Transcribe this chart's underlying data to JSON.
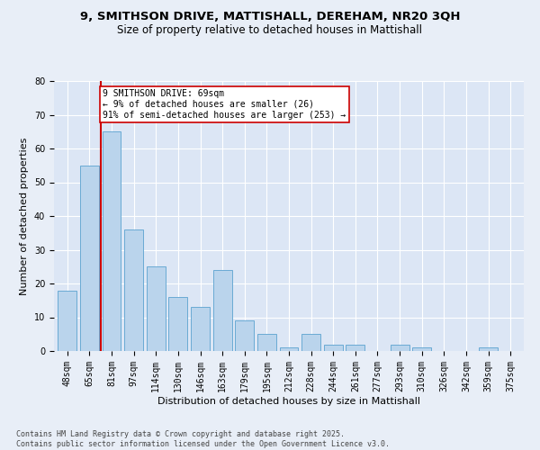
{
  "title1": "9, SMITHSON DRIVE, MATTISHALL, DEREHAM, NR20 3QH",
  "title2": "Size of property relative to detached houses in Mattishall",
  "xlabel": "Distribution of detached houses by size in Mattishall",
  "ylabel": "Number of detached properties",
  "categories": [
    "48sqm",
    "65sqm",
    "81sqm",
    "97sqm",
    "114sqm",
    "130sqm",
    "146sqm",
    "163sqm",
    "179sqm",
    "195sqm",
    "212sqm",
    "228sqm",
    "244sqm",
    "261sqm",
    "277sqm",
    "293sqm",
    "310sqm",
    "326sqm",
    "342sqm",
    "359sqm",
    "375sqm"
  ],
  "values": [
    18,
    55,
    65,
    36,
    25,
    16,
    13,
    24,
    9,
    5,
    1,
    5,
    2,
    2,
    0,
    2,
    1,
    0,
    0,
    1,
    0
  ],
  "bar_color": "#bad4ec",
  "bar_edge_color": "#6aaad4",
  "vline_x": 1.5,
  "vline_color": "#cc0000",
  "annotation_text": "9 SMITHSON DRIVE: 69sqm\n← 9% of detached houses are smaller (26)\n91% of semi-detached houses are larger (253) →",
  "annotation_box_color": "#ffffff",
  "annotation_box_edge": "#cc0000",
  "annotation_fontsize": 7.0,
  "ylim": [
    0,
    80
  ],
  "yticks": [
    0,
    10,
    20,
    30,
    40,
    50,
    60,
    70,
    80
  ],
  "background_color": "#e8eef7",
  "plot_bg_color": "#dce6f5",
  "grid_color": "#ffffff",
  "footer": "Contains HM Land Registry data © Crown copyright and database right 2025.\nContains public sector information licensed under the Open Government Licence v3.0.",
  "title_fontsize": 9.5,
  "subtitle_fontsize": 8.5,
  "axis_label_fontsize": 8,
  "tick_fontsize": 7
}
